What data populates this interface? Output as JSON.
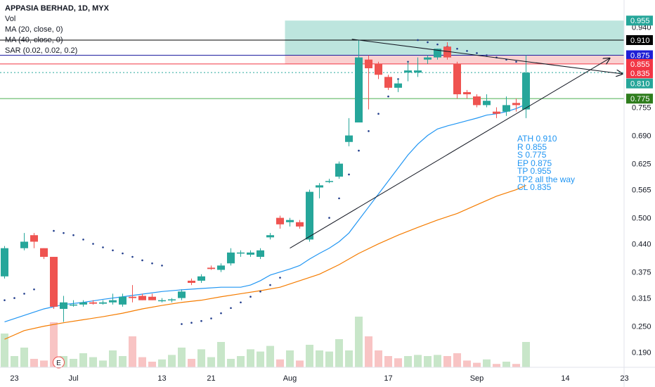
{
  "chart_data": {
    "type": "candlestick",
    "title": "APPASIA BERHAD, 1D, MYX",
    "indicators": [
      "Vol",
      "MA (20, close, 0)",
      "MA (40, close, 0)",
      "SAR (0.02, 0.02, 0.2)"
    ],
    "x_ticks": [
      {
        "i": 1,
        "label": "23"
      },
      {
        "i": 7,
        "label": "Jul"
      },
      {
        "i": 16,
        "label": "13"
      },
      {
        "i": 21,
        "label": "21"
      },
      {
        "i": 29,
        "label": "Aug"
      },
      {
        "i": 39,
        "label": "17"
      },
      {
        "i": 48,
        "label": "Sep"
      },
      {
        "i": 57,
        "label": "14"
      },
      {
        "i": 63,
        "label": "23"
      }
    ],
    "y_ticks": [
      0.19,
      0.25,
      0.315,
      0.375,
      0.44,
      0.5,
      0.565,
      0.625,
      0.69,
      0.755,
      0.815,
      0.875,
      0.94
    ],
    "ylim": [
      0.165,
      0.97
    ],
    "n_slots": 64,
    "candles": [
      {
        "i": 0,
        "o": 0.365,
        "h": 0.435,
        "l": 0.36,
        "c": 0.43
      },
      {
        "i": 2,
        "o": 0.43,
        "h": 0.465,
        "l": 0.425,
        "c": 0.445
      },
      {
        "i": 3,
        "o": 0.46,
        "h": 0.465,
        "l": 0.43,
        "c": 0.445
      },
      {
        "i": 4,
        "o": 0.43,
        "h": 0.43,
        "l": 0.405,
        "c": 0.41
      },
      {
        "i": 5,
        "o": 0.41,
        "h": 0.41,
        "l": 0.29,
        "c": 0.295
      },
      {
        "i": 6,
        "o": 0.29,
        "h": 0.32,
        "l": 0.26,
        "c": 0.305
      },
      {
        "i": 7,
        "o": 0.3,
        "h": 0.31,
        "l": 0.295,
        "c": 0.3
      },
      {
        "i": 8,
        "o": 0.3,
        "h": 0.31,
        "l": 0.295,
        "c": 0.305
      },
      {
        "i": 9,
        "o": 0.305,
        "h": 0.31,
        "l": 0.3,
        "c": 0.302
      },
      {
        "i": 10,
        "o": 0.302,
        "h": 0.31,
        "l": 0.3,
        "c": 0.305
      },
      {
        "i": 11,
        "o": 0.305,
        "h": 0.325,
        "l": 0.3,
        "c": 0.31
      },
      {
        "i": 12,
        "o": 0.3,
        "h": 0.325,
        "l": 0.295,
        "c": 0.318
      },
      {
        "i": 13,
        "o": 0.318,
        "h": 0.345,
        "l": 0.305,
        "c": 0.315
      },
      {
        "i": 14,
        "o": 0.32,
        "h": 0.325,
        "l": 0.31,
        "c": 0.31
      },
      {
        "i": 15,
        "o": 0.318,
        "h": 0.325,
        "l": 0.31,
        "c": 0.31
      },
      {
        "i": 16,
        "o": 0.31,
        "h": 0.315,
        "l": 0.305,
        "c": 0.31
      },
      {
        "i": 17,
        "o": 0.31,
        "h": 0.315,
        "l": 0.305,
        "c": 0.312
      },
      {
        "i": 18,
        "o": 0.315,
        "h": 0.335,
        "l": 0.31,
        "c": 0.33
      },
      {
        "i": 19,
        "o": 0.355,
        "h": 0.36,
        "l": 0.345,
        "c": 0.35
      },
      {
        "i": 20,
        "o": 0.355,
        "h": 0.37,
        "l": 0.35,
        "c": 0.365
      },
      {
        "i": 21,
        "o": 0.385,
        "h": 0.39,
        "l": 0.38,
        "c": 0.382
      },
      {
        "i": 22,
        "o": 0.38,
        "h": 0.395,
        "l": 0.375,
        "c": 0.39
      },
      {
        "i": 23,
        "o": 0.395,
        "h": 0.43,
        "l": 0.39,
        "c": 0.42
      },
      {
        "i": 24,
        "o": 0.42,
        "h": 0.425,
        "l": 0.41,
        "c": 0.42
      },
      {
        "i": 25,
        "o": 0.415,
        "h": 0.425,
        "l": 0.41,
        "c": 0.42
      },
      {
        "i": 26,
        "o": 0.41,
        "h": 0.43,
        "l": 0.405,
        "c": 0.425
      },
      {
        "i": 27,
        "o": 0.455,
        "h": 0.465,
        "l": 0.45,
        "c": 0.46
      },
      {
        "i": 28,
        "o": 0.5,
        "h": 0.505,
        "l": 0.475,
        "c": 0.485
      },
      {
        "i": 29,
        "o": 0.49,
        "h": 0.5,
        "l": 0.48,
        "c": 0.495
      },
      {
        "i": 30,
        "o": 0.49,
        "h": 0.495,
        "l": 0.475,
        "c": 0.48
      },
      {
        "i": 31,
        "o": 0.45,
        "h": 0.565,
        "l": 0.445,
        "c": 0.56
      },
      {
        "i": 32,
        "o": 0.57,
        "h": 0.58,
        "l": 0.545,
        "c": 0.575
      },
      {
        "i": 33,
        "o": 0.585,
        "h": 0.59,
        "l": 0.58,
        "c": 0.585
      },
      {
        "i": 34,
        "o": 0.595,
        "h": 0.63,
        "l": 0.59,
        "c": 0.625
      },
      {
        "i": 35,
        "o": 0.675,
        "h": 0.73,
        "l": 0.665,
        "c": 0.69
      },
      {
        "i": 36,
        "o": 0.72,
        "h": 0.91,
        "l": 0.72,
        "c": 0.87
      },
      {
        "i": 37,
        "o": 0.865,
        "h": 0.875,
        "l": 0.75,
        "c": 0.845
      },
      {
        "i": 38,
        "o": 0.855,
        "h": 0.86,
        "l": 0.82,
        "c": 0.83
      },
      {
        "i": 39,
        "o": 0.825,
        "h": 0.83,
        "l": 0.795,
        "c": 0.8
      },
      {
        "i": 40,
        "o": 0.8,
        "h": 0.82,
        "l": 0.79,
        "c": 0.81
      },
      {
        "i": 41,
        "o": 0.835,
        "h": 0.86,
        "l": 0.815,
        "c": 0.84
      },
      {
        "i": 42,
        "o": 0.835,
        "h": 0.87,
        "l": 0.825,
        "c": 0.84
      },
      {
        "i": 43,
        "o": 0.865,
        "h": 0.875,
        "l": 0.855,
        "c": 0.87
      },
      {
        "i": 44,
        "o": 0.87,
        "h": 0.89,
        "l": 0.865,
        "c": 0.89
      },
      {
        "i": 45,
        "o": 0.895,
        "h": 0.905,
        "l": 0.865,
        "c": 0.87
      },
      {
        "i": 46,
        "o": 0.855,
        "h": 0.86,
        "l": 0.775,
        "c": 0.785
      },
      {
        "i": 47,
        "o": 0.79,
        "h": 0.795,
        "l": 0.775,
        "c": 0.785
      },
      {
        "i": 48,
        "o": 0.78,
        "h": 0.785,
        "l": 0.755,
        "c": 0.76
      },
      {
        "i": 49,
        "o": 0.76,
        "h": 0.785,
        "l": 0.755,
        "c": 0.77
      },
      {
        "i": 50,
        "o": 0.745,
        "h": 0.755,
        "l": 0.73,
        "c": 0.74
      },
      {
        "i": 51,
        "o": 0.745,
        "h": 0.78,
        "l": 0.735,
        "c": 0.76
      },
      {
        "i": 52,
        "o": 0.765,
        "h": 0.775,
        "l": 0.745,
        "c": 0.76
      },
      {
        "i": 53,
        "o": 0.75,
        "h": 0.875,
        "l": 0.73,
        "c": 0.835
      }
    ],
    "volume": [
      {
        "i": 0,
        "v": 0.6,
        "up": true
      },
      {
        "i": 1,
        "v": 0.2,
        "up": true
      },
      {
        "i": 2,
        "v": 0.35,
        "up": true
      },
      {
        "i": 3,
        "v": 0.15,
        "up": false
      },
      {
        "i": 4,
        "v": 0.12,
        "up": false
      },
      {
        "i": 5,
        "v": 0.8,
        "up": false
      },
      {
        "i": 6,
        "v": 0.2,
        "up": true
      },
      {
        "i": 7,
        "v": 0.15,
        "up": true
      },
      {
        "i": 8,
        "v": 0.25,
        "up": true
      },
      {
        "i": 9,
        "v": 0.18,
        "up": true
      },
      {
        "i": 10,
        "v": 0.12,
        "up": true
      },
      {
        "i": 11,
        "v": 0.3,
        "up": true
      },
      {
        "i": 12,
        "v": 0.2,
        "up": true
      },
      {
        "i": 13,
        "v": 0.55,
        "up": false
      },
      {
        "i": 14,
        "v": 0.18,
        "up": false
      },
      {
        "i": 15,
        "v": 0.1,
        "up": false
      },
      {
        "i": 16,
        "v": 0.14,
        "up": true
      },
      {
        "i": 17,
        "v": 0.22,
        "up": true
      },
      {
        "i": 18,
        "v": 0.35,
        "up": true
      },
      {
        "i": 19,
        "v": 0.15,
        "up": false
      },
      {
        "i": 20,
        "v": 0.32,
        "up": true
      },
      {
        "i": 21,
        "v": 0.18,
        "up": true
      },
      {
        "i": 22,
        "v": 0.45,
        "up": true
      },
      {
        "i": 23,
        "v": 0.15,
        "up": true
      },
      {
        "i": 24,
        "v": 0.2,
        "up": true
      },
      {
        "i": 25,
        "v": 0.32,
        "up": true
      },
      {
        "i": 26,
        "v": 0.28,
        "up": true
      },
      {
        "i": 27,
        "v": 0.38,
        "up": true
      },
      {
        "i": 28,
        "v": 0.14,
        "up": false
      },
      {
        "i": 29,
        "v": 0.3,
        "up": true
      },
      {
        "i": 30,
        "v": 0.12,
        "up": false
      },
      {
        "i": 31,
        "v": 0.4,
        "up": true
      },
      {
        "i": 32,
        "v": 0.3,
        "up": true
      },
      {
        "i": 33,
        "v": 0.28,
        "up": true
      },
      {
        "i": 34,
        "v": 0.5,
        "up": true
      },
      {
        "i": 35,
        "v": 0.3,
        "up": true
      },
      {
        "i": 36,
        "v": 0.9,
        "up": true
      },
      {
        "i": 37,
        "v": 0.55,
        "up": false
      },
      {
        "i": 38,
        "v": 0.3,
        "up": false
      },
      {
        "i": 39,
        "v": 0.2,
        "up": false
      },
      {
        "i": 40,
        "v": 0.16,
        "up": false
      },
      {
        "i": 41,
        "v": 0.2,
        "up": true
      },
      {
        "i": 42,
        "v": 0.22,
        "up": true
      },
      {
        "i": 43,
        "v": 0.2,
        "up": true
      },
      {
        "i": 44,
        "v": 0.22,
        "up": true
      },
      {
        "i": 45,
        "v": 0.2,
        "up": false
      },
      {
        "i": 46,
        "v": 0.25,
        "up": false
      },
      {
        "i": 47,
        "v": 0.12,
        "up": false
      },
      {
        "i": 48,
        "v": 0.08,
        "up": false
      },
      {
        "i": 49,
        "v": 0.14,
        "up": true
      },
      {
        "i": 50,
        "v": 0.06,
        "up": false
      },
      {
        "i": 51,
        "v": 0.1,
        "up": true
      },
      {
        "i": 52,
        "v": 0.06,
        "up": false
      },
      {
        "i": 53,
        "v": 0.45,
        "up": true
      }
    ],
    "ma20": [
      [
        0,
        0.26
      ],
      [
        2,
        0.275
      ],
      [
        4,
        0.29
      ],
      [
        6,
        0.3
      ],
      [
        8,
        0.305
      ],
      [
        10,
        0.312
      ],
      [
        12,
        0.318
      ],
      [
        14,
        0.324
      ],
      [
        16,
        0.33
      ],
      [
        18,
        0.334
      ],
      [
        20,
        0.337
      ],
      [
        22,
        0.34
      ],
      [
        24,
        0.34
      ],
      [
        25,
        0.345
      ],
      [
        26,
        0.355
      ],
      [
        27,
        0.368
      ],
      [
        28,
        0.375
      ],
      [
        29,
        0.382
      ],
      [
        30,
        0.39
      ],
      [
        31,
        0.405
      ],
      [
        32,
        0.418
      ],
      [
        33,
        0.43
      ],
      [
        34,
        0.445
      ],
      [
        35,
        0.465
      ],
      [
        36,
        0.495
      ],
      [
        37,
        0.525
      ],
      [
        38,
        0.555
      ],
      [
        39,
        0.585
      ],
      [
        40,
        0.615
      ],
      [
        41,
        0.645
      ],
      [
        42,
        0.67
      ],
      [
        43,
        0.69
      ],
      [
        44,
        0.705
      ],
      [
        45,
        0.712
      ],
      [
        46,
        0.718
      ],
      [
        47,
        0.724
      ],
      [
        48,
        0.73
      ],
      [
        49,
        0.737
      ],
      [
        50,
        0.74
      ],
      [
        51,
        0.745
      ],
      [
        52,
        0.752
      ],
      [
        53,
        0.762
      ]
    ],
    "ma40": [
      [
        0,
        0.22
      ],
      [
        2,
        0.24
      ],
      [
        4,
        0.25
      ],
      [
        6,
        0.258
      ],
      [
        8,
        0.265
      ],
      [
        10,
        0.272
      ],
      [
        12,
        0.28
      ],
      [
        14,
        0.29
      ],
      [
        16,
        0.298
      ],
      [
        18,
        0.305
      ],
      [
        20,
        0.31
      ],
      [
        22,
        0.318
      ],
      [
        24,
        0.325
      ],
      [
        26,
        0.332
      ],
      [
        28,
        0.34
      ],
      [
        30,
        0.355
      ],
      [
        32,
        0.37
      ],
      [
        34,
        0.392
      ],
      [
        36,
        0.418
      ],
      [
        38,
        0.44
      ],
      [
        40,
        0.46
      ],
      [
        42,
        0.478
      ],
      [
        44,
        0.495
      ],
      [
        46,
        0.51
      ],
      [
        48,
        0.53
      ],
      [
        50,
        0.55
      ],
      [
        52,
        0.565
      ],
      [
        53,
        0.575
      ]
    ],
    "sar": [
      [
        0,
        0.31
      ],
      [
        1,
        0.315
      ],
      [
        2,
        0.325
      ],
      [
        3,
        0.335
      ],
      [
        5,
        0.47
      ],
      [
        6,
        0.465
      ],
      [
        7,
        0.46
      ],
      [
        8,
        0.45
      ],
      [
        9,
        0.44
      ],
      [
        10,
        0.432
      ],
      [
        11,
        0.425
      ],
      [
        12,
        0.418
      ],
      [
        13,
        0.41
      ],
      [
        14,
        0.402
      ],
      [
        15,
        0.395
      ],
      [
        16,
        0.39
      ],
      [
        18,
        0.255
      ],
      [
        19,
        0.258
      ],
      [
        20,
        0.262
      ],
      [
        21,
        0.268
      ],
      [
        22,
        0.28
      ],
      [
        23,
        0.292
      ],
      [
        24,
        0.305
      ],
      [
        25,
        0.318
      ],
      [
        26,
        0.33
      ],
      [
        27,
        0.345
      ],
      [
        28,
        0.362
      ],
      [
        33,
        0.5
      ],
      [
        34,
        0.545
      ],
      [
        35,
        0.6
      ],
      [
        36,
        0.655
      ],
      [
        37,
        0.7
      ],
      [
        38,
        0.74
      ],
      [
        39,
        0.78
      ],
      [
        40,
        0.82
      ],
      [
        41,
        0.86
      ],
      [
        42,
        0.91
      ],
      [
        43,
        0.905
      ],
      [
        44,
        0.9
      ],
      [
        45,
        0.895
      ],
      [
        46,
        0.89
      ],
      [
        47,
        0.885
      ],
      [
        48,
        0.88
      ],
      [
        49,
        0.875
      ],
      [
        50,
        0.87
      ],
      [
        51,
        0.865
      ],
      [
        52,
        0.86
      ]
    ],
    "horizontal_lines": [
      {
        "value": 0.91,
        "color": "#000000",
        "dashed": false
      },
      {
        "value": 0.875,
        "color": "#1e1ea0",
        "dashed": false
      },
      {
        "value": 0.855,
        "color": "#f23645",
        "dashed": false
      },
      {
        "value": 0.835,
        "color": "#26a69a",
        "dashed": true
      },
      {
        "value": 0.775,
        "color": "#4caf50",
        "dashed": false
      }
    ],
    "zones": [
      {
        "x0": 29,
        "x1": 64,
        "y0": 0.875,
        "y1": 0.955,
        "color": "#b2e0d8"
      },
      {
        "x0": 29,
        "x1": 64,
        "y0": 0.855,
        "y1": 0.875,
        "color": "#f9c9c9"
      }
    ],
    "trendlines": [
      {
        "x0": 35.3,
        "y0": 0.912,
        "x1": 62.8,
        "y1": 0.832,
        "arrow": true
      },
      {
        "x0": 29,
        "y0": 0.43,
        "x1": 61.5,
        "y1": 0.868,
        "arrow": true
      }
    ],
    "price_tags": [
      {
        "value": 0.955,
        "label": "0.955",
        "bg": "#26a69a",
        "fg": "#ffffff"
      },
      {
        "value": 0.91,
        "label": "0.910",
        "bg": "#000000",
        "fg": "#ffffff"
      },
      {
        "value": 0.875,
        "label": "0.875",
        "bg": "#1f1fd6",
        "fg": "#ffffff"
      },
      {
        "value": 0.875,
        "label": "0.875",
        "bg": "#7a7a7a",
        "fg": "#ffffff",
        "shift": 14
      },
      {
        "value": 0.855,
        "label": "0.855",
        "bg": "#f23645",
        "fg": "#ffffff"
      },
      {
        "value": 0.835,
        "label": "0.835",
        "bg": "#f23645",
        "fg": "#ffffff",
        "shift": 1
      },
      {
        "value": 0.81,
        "label": "0.810",
        "bg": "#26a69a",
        "fg": "#ffffff"
      },
      {
        "value": 0.775,
        "label": "0.775",
        "bg": "#2f7d1e",
        "fg": "#ffffff"
      }
    ],
    "event_marker": {
      "i": 5.5,
      "label": "E"
    },
    "annotation_lines": [
      "ATH 0.910",
      "R 0.855",
      "S 0.775",
      "EP 0.875",
      "TP 0.955",
      "TP2 all the way",
      "CL 0.835"
    ],
    "colors": {
      "up": "#26a69a",
      "down": "#ef5350",
      "ma20": "#2196f3",
      "ma40": "#f57c00",
      "sar": "#1e3a8a",
      "vol_up": "#c8e6c9",
      "vol_down": "#f8c4c4"
    }
  }
}
